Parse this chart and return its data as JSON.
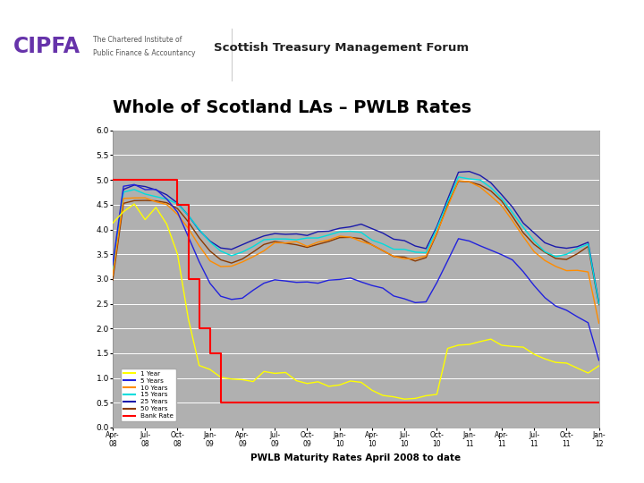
{
  "title": "Whole of Scotland LAs – PWLB Rates",
  "header": "Scottish Treasury Management Forum",
  "xlabel": "PWLB Maturity Rates April 2008 to date",
  "ylim": [
    0.0,
    6.0
  ],
  "yticks": [
    0.0,
    0.5,
    1.0,
    1.5,
    2.0,
    2.5,
    3.0,
    3.5,
    4.0,
    4.5,
    5.0,
    5.5,
    6.0
  ],
  "background_color": "#ffffff",
  "plot_bg_color": "#b0b0b0",
  "grid_color": "#d8d8d8",
  "x_labels": [
    "Apr-\n08",
    "Jul-\n08",
    "Oct-\n08",
    "Jan-\n09",
    "Apr-\n09",
    "Jul-\n09",
    "Oct-\n09",
    "Jan-\n10",
    "Apr-\n10",
    "Jul-\n10",
    "Oct-\n10",
    "Jan-\n11",
    "Apr-\n11",
    "Jul-\n11",
    "Oct-\n11",
    "Jan-\n12"
  ],
  "line_colors": {
    "1yr": "#ffff00",
    "5yr": "#2222dd",
    "10yr": "#ff8c00",
    "15yr": "#00dddd",
    "25yr": "#1a1aaa",
    "50yr": "#8b3a00",
    "bank": "#ff0000"
  },
  "legend_labels": [
    "1 Year",
    "5 Years",
    "10 Years",
    "15 Years",
    "25 Years",
    "50 Years",
    "Bank Rate"
  ],
  "header_bg": "#ffffff",
  "header_bar_color": "#6633aa",
  "cipfa_color": "#6633aa",
  "title_color": "#000000",
  "slide_bg": "#ffffff"
}
